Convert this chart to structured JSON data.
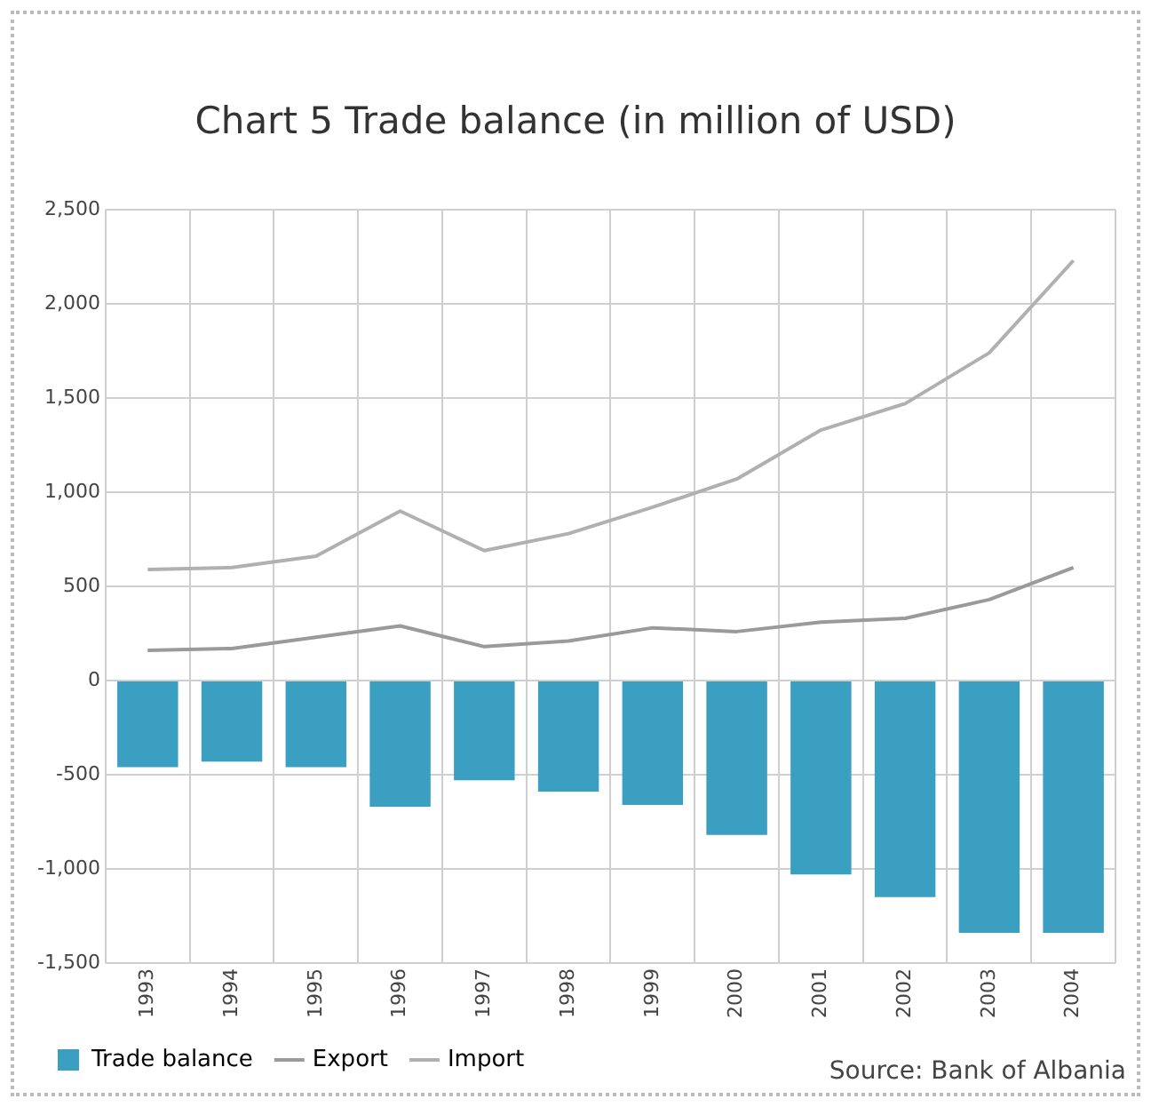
{
  "chart_data": {
    "type": "bar",
    "title": "Chart 5 Trade balance (in million of USD)",
    "categories": [
      "1993",
      "1994",
      "1995",
      "1996",
      "1997",
      "1998",
      "1999",
      "2000",
      "2001",
      "2002",
      "2003",
      "2004"
    ],
    "series": [
      {
        "name": "Trade balance",
        "color": "#3a9fc0",
        "values": [
          -460,
          -430,
          -460,
          -670,
          -530,
          -590,
          -660,
          -820,
          -1030,
          -1150,
          -1340,
          -1340
        ]
      },
      {
        "name": "Export",
        "type": "line",
        "color": "#9a9a9a",
        "values": [
          160,
          170,
          230,
          290,
          180,
          210,
          280,
          260,
          310,
          330,
          430,
          600
        ]
      },
      {
        "name": "Import",
        "type": "line",
        "color": "#b0b0b0",
        "values": [
          590,
          600,
          660,
          900,
          690,
          780,
          920,
          1070,
          1330,
          1470,
          1740,
          2230
        ]
      }
    ],
    "ylim": [
      -1500,
      2500
    ],
    "yticks": [
      {
        "value": -1500,
        "label": "-1,500"
      },
      {
        "value": -1000,
        "label": "-1,000"
      },
      -500,
      0,
      500,
      {
        "value": 1000,
        "label": "1,000"
      },
      {
        "value": 1500,
        "label": "1,500"
      },
      {
        "value": 2000,
        "label": "2,000"
      },
      {
        "value": 2500,
        "label": "2,500"
      }
    ],
    "grid": true,
    "legend": "bottom left",
    "marker": "none",
    "line_style": "solid",
    "annotations": [
      "Source: Bank of Albania"
    ]
  }
}
